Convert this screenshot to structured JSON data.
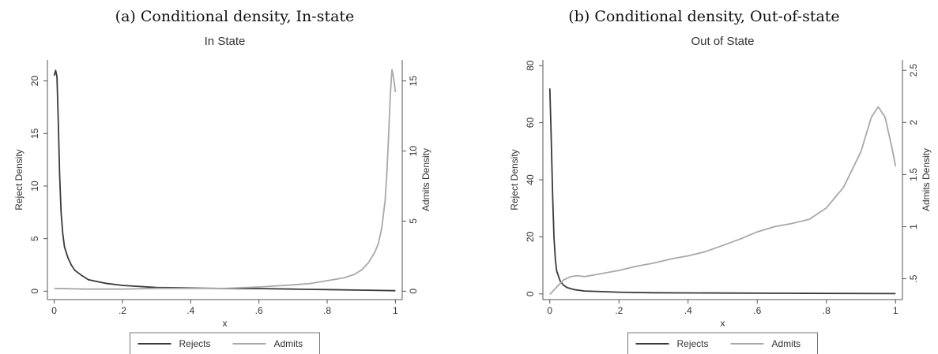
{
  "chart_data": [
    {
      "type": "line",
      "caption": "(a) Conditional density, In-state",
      "title": "In State",
      "xlabel": "x",
      "ylabel_left": "Reject Density",
      "ylabel_right": "Admits Density",
      "xlim": [
        -0.02,
        1.02
      ],
      "ylim_left": [
        -0.8,
        22
      ],
      "ylim_right": [
        -0.6,
        16.5
      ],
      "xticks": [
        {
          "value": 0,
          "label": "0"
        },
        {
          "value": 0.2,
          "label": ".2"
        },
        {
          "value": 0.4,
          "label": ".4"
        },
        {
          "value": 0.6,
          "label": ".6"
        },
        {
          "value": 0.8,
          "label": ".8"
        },
        {
          "value": 1,
          "label": "1"
        }
      ],
      "yticks_left": [
        {
          "value": 0,
          "label": "0"
        },
        {
          "value": 5,
          "label": "5"
        },
        {
          "value": 10,
          "label": "10"
        },
        {
          "value": 15,
          "label": "15"
        },
        {
          "value": 20,
          "label": "20"
        }
      ],
      "yticks_right": [
        {
          "value": 0,
          "label": "0"
        },
        {
          "value": 5,
          "label": "5"
        },
        {
          "value": 10,
          "label": "10"
        },
        {
          "value": 15,
          "label": "15"
        }
      ],
      "series": [
        {
          "name": "Rejects",
          "axis": "left",
          "color": "#3a3a3a",
          "points": [
            [
              0,
              20.5
            ],
            [
              0.004,
              21.0
            ],
            [
              0.008,
              20.4
            ],
            [
              0.012,
              16
            ],
            [
              0.016,
              11
            ],
            [
              0.02,
              7.5
            ],
            [
              0.025,
              5.5
            ],
            [
              0.03,
              4.2
            ],
            [
              0.04,
              3.2
            ],
            [
              0.05,
              2.5
            ],
            [
              0.06,
              2.0
            ],
            [
              0.08,
              1.5
            ],
            [
              0.1,
              1.1
            ],
            [
              0.15,
              0.75
            ],
            [
              0.2,
              0.55
            ],
            [
              0.3,
              0.35
            ],
            [
              0.4,
              0.3
            ],
            [
              0.5,
              0.25
            ],
            [
              0.6,
              0.25
            ],
            [
              0.7,
              0.2
            ],
            [
              0.8,
              0.15
            ],
            [
              0.9,
              0.1
            ],
            [
              1.0,
              0.05
            ]
          ]
        },
        {
          "name": "Admits",
          "axis": "right",
          "color": "#a8a8a8",
          "points": [
            [
              0,
              0.2
            ],
            [
              0.1,
              0.15
            ],
            [
              0.2,
              0.15
            ],
            [
              0.3,
              0.2
            ],
            [
              0.4,
              0.2
            ],
            [
              0.5,
              0.2
            ],
            [
              0.6,
              0.3
            ],
            [
              0.7,
              0.45
            ],
            [
              0.75,
              0.55
            ],
            [
              0.8,
              0.75
            ],
            [
              0.85,
              0.95
            ],
            [
              0.88,
              1.2
            ],
            [
              0.9,
              1.5
            ],
            [
              0.92,
              2.0
            ],
            [
              0.94,
              2.8
            ],
            [
              0.95,
              3.4
            ],
            [
              0.96,
              4.5
            ],
            [
              0.97,
              6.5
            ],
            [
              0.975,
              8.5
            ],
            [
              0.98,
              11
            ],
            [
              0.985,
              14
            ],
            [
              0.99,
              15.8
            ],
            [
              0.995,
              15.2
            ],
            [
              1.0,
              14.2
            ]
          ]
        }
      ],
      "legend": {
        "position": "bottom",
        "entries": [
          "Rejects",
          "Admits"
        ]
      },
      "grid": false
    },
    {
      "type": "line",
      "caption": "(b) Conditional density, Out-of-state",
      "title": "Out of State",
      "xlabel": "x",
      "ylabel_left": "Reject Density",
      "ylabel_right": "Admits Density",
      "xlim": [
        -0.02,
        1.02
      ],
      "ylim_left": [
        -2,
        82
      ],
      "ylim_right": [
        0.3,
        2.6
      ],
      "xticks": [
        {
          "value": 0,
          "label": "0"
        },
        {
          "value": 0.2,
          "label": ".2"
        },
        {
          "value": 0.4,
          "label": ".4"
        },
        {
          "value": 0.6,
          "label": ".6"
        },
        {
          "value": 0.8,
          "label": ".8"
        },
        {
          "value": 1,
          "label": "1"
        }
      ],
      "yticks_left": [
        {
          "value": 0,
          "label": "0"
        },
        {
          "value": 20,
          "label": "20"
        },
        {
          "value": 40,
          "label": "40"
        },
        {
          "value": 60,
          "label": "60"
        },
        {
          "value": 80,
          "label": "80"
        }
      ],
      "yticks_right": [
        {
          "value": 0.5,
          "label": ".5"
        },
        {
          "value": 1,
          "label": "1"
        },
        {
          "value": 1.5,
          "label": "1.5"
        },
        {
          "value": 2,
          "label": "2"
        },
        {
          "value": 2.5,
          "label": "2.5"
        }
      ],
      "series": [
        {
          "name": "Rejects",
          "axis": "left",
          "color": "#3a3a3a",
          "points": [
            [
              0,
              72
            ],
            [
              0.004,
              55
            ],
            [
              0.008,
              35
            ],
            [
              0.012,
              20
            ],
            [
              0.016,
              12
            ],
            [
              0.02,
              8
            ],
            [
              0.03,
              4.5
            ],
            [
              0.04,
              3
            ],
            [
              0.05,
              2.2
            ],
            [
              0.07,
              1.5
            ],
            [
              0.1,
              1.0
            ],
            [
              0.2,
              0.6
            ],
            [
              0.3,
              0.4
            ],
            [
              0.5,
              0.3
            ],
            [
              0.7,
              0.2
            ],
            [
              1.0,
              0.1
            ]
          ]
        },
        {
          "name": "Admits",
          "axis": "right",
          "color": "#a8a8a8",
          "points": [
            [
              0,
              0.35
            ],
            [
              0.02,
              0.42
            ],
            [
              0.04,
              0.49
            ],
            [
              0.06,
              0.52
            ],
            [
              0.08,
              0.53
            ],
            [
              0.1,
              0.52
            ],
            [
              0.15,
              0.55
            ],
            [
              0.2,
              0.58
            ],
            [
              0.25,
              0.62
            ],
            [
              0.3,
              0.65
            ],
            [
              0.35,
              0.69
            ],
            [
              0.4,
              0.72
            ],
            [
              0.45,
              0.76
            ],
            [
              0.5,
              0.82
            ],
            [
              0.55,
              0.88
            ],
            [
              0.6,
              0.95
            ],
            [
              0.65,
              1.0
            ],
            [
              0.7,
              1.03
            ],
            [
              0.75,
              1.07
            ],
            [
              0.8,
              1.18
            ],
            [
              0.85,
              1.38
            ],
            [
              0.9,
              1.72
            ],
            [
              0.93,
              2.05
            ],
            [
              0.95,
              2.15
            ],
            [
              0.97,
              2.05
            ],
            [
              0.99,
              1.75
            ],
            [
              1.0,
              1.58
            ]
          ]
        }
      ],
      "legend": {
        "position": "bottom",
        "entries": [
          "Rejects",
          "Admits"
        ]
      },
      "grid": false
    }
  ]
}
